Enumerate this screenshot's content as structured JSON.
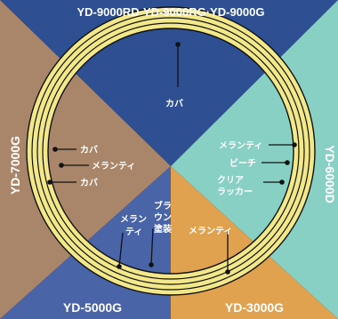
{
  "models": {
    "top": "YD-9000RD·YD-9000RG·YD-9000G",
    "left": "YD-7000G",
    "right": "YD-6000D",
    "bottom_left": "YD-5000G",
    "bottom_right": "YD-3000G"
  },
  "labels": {
    "top_kaba": "カバ",
    "left_kaba_1": "カバ",
    "left_meranti": "メランティ",
    "left_kaba_2": "カバ",
    "right_meranti": "メランティ",
    "right_beech": "ビーチ",
    "right_clear_1": "クリア",
    "right_clear_2": "ラッカー",
    "bottom_right_meranti": "メランティ",
    "bottom_left_meranti_1": "メラン",
    "bottom_left_meranti_2": "ティ",
    "brown_1": "ブラ",
    "brown_2": "ウン",
    "brown_3": "塗装"
  },
  "colors": {
    "top_sector": "#2f4f93",
    "left_sector": "#a9866a",
    "right_sector": "#89d0c4",
    "bottom_left_sector": "#4a64a8",
    "bottom_right_sector": "#e0a24e",
    "ring": "#f2e88a",
    "line": "#111111"
  }
}
